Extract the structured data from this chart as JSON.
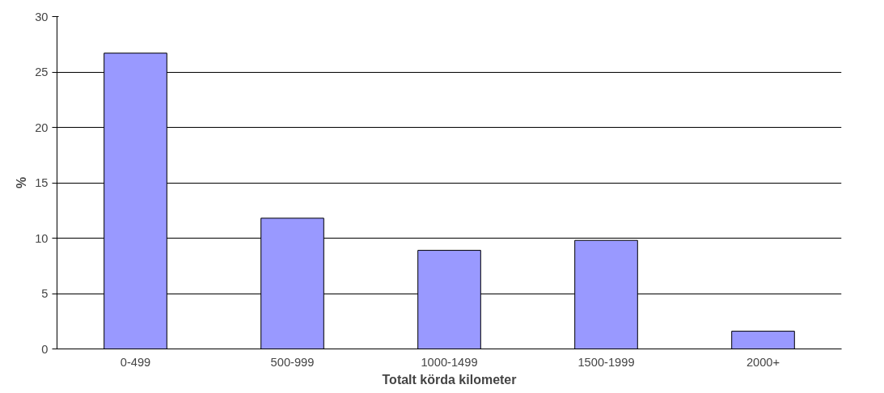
{
  "chart_data": {
    "type": "bar",
    "xlabel": "Totalt körda kilometer",
    "ylabel": "%",
    "categories": [
      "0-499",
      "500-999",
      "1000-1499",
      "1500-1999",
      "2000+"
    ],
    "values": [
      26.7,
      11.8,
      8.9,
      9.8,
      1.6
    ],
    "color": "#9999ff",
    "ylim": [
      0,
      30
    ],
    "yticks": [
      0,
      5,
      10,
      15,
      20,
      25,
      30
    ],
    "grid": "y"
  }
}
